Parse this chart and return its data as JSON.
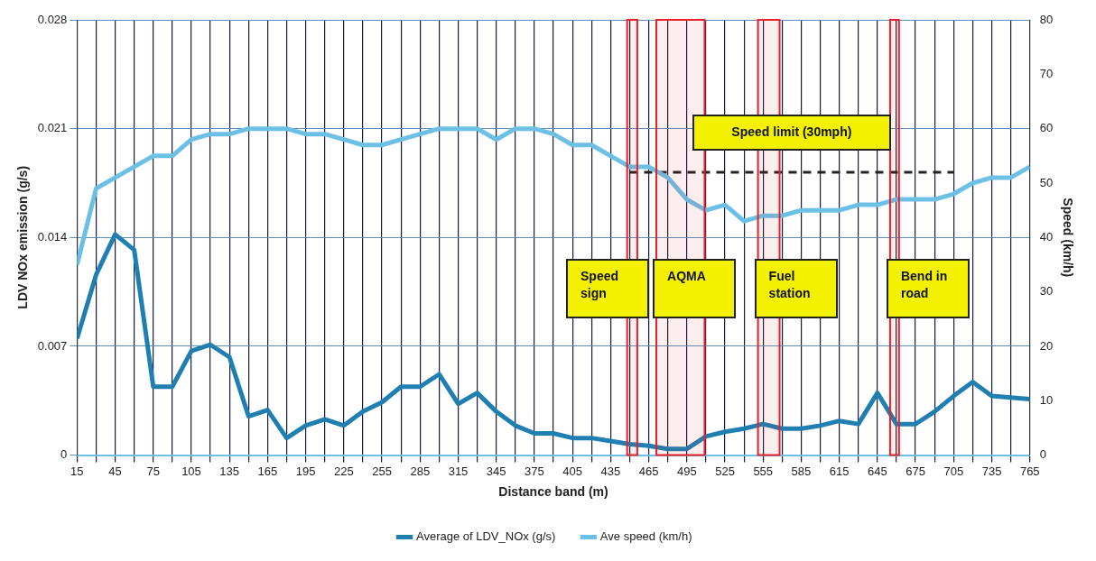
{
  "chart_data": {
    "type": "line",
    "xlabel": "Distance band (m)",
    "ylabel": "LDV NOx emission (g/s)",
    "y2label": "Speed (km/h)",
    "x": [
      15,
      30,
      45,
      60,
      75,
      90,
      105,
      120,
      135,
      150,
      165,
      180,
      195,
      210,
      225,
      240,
      255,
      270,
      285,
      300,
      315,
      330,
      345,
      360,
      375,
      390,
      405,
      420,
      435,
      450,
      465,
      480,
      495,
      510,
      525,
      540,
      555,
      570,
      585,
      600,
      615,
      630,
      645,
      660,
      675,
      690,
      705,
      720,
      735,
      750,
      765
    ],
    "xlim": [
      15,
      765
    ],
    "xticks": [
      15,
      {
        "value": 30,
        "label": null
      },
      45,
      {
        "value": 60,
        "label": null
      },
      75,
      {
        "value": 90,
        "label": null
      },
      105,
      {
        "value": 120,
        "label": null
      },
      135,
      {
        "value": 150,
        "label": null
      },
      165,
      {
        "value": 180,
        "label": null
      },
      195,
      {
        "value": 210,
        "label": null
      },
      225,
      {
        "value": 240,
        "label": null
      },
      255,
      {
        "value": 270,
        "label": null
      },
      285,
      {
        "value": 300,
        "label": null
      },
      315,
      {
        "value": 330,
        "label": null
      },
      345,
      {
        "value": 360,
        "label": null
      },
      375,
      {
        "value": 390,
        "label": null
      },
      405,
      {
        "value": 420,
        "label": null
      },
      435,
      {
        "value": 450,
        "label": null
      },
      465,
      {
        "value": 480,
        "label": null
      },
      495,
      {
        "value": 510,
        "label": null
      },
      525,
      {
        "value": 540,
        "label": null
      },
      555,
      {
        "value": 570,
        "label": null
      },
      585,
      {
        "value": 600,
        "label": null
      },
      615,
      {
        "value": 630,
        "label": null
      },
      645,
      {
        "value": 660,
        "label": null
      },
      675,
      {
        "value": 690,
        "label": null
      },
      705,
      {
        "value": 720,
        "label": null
      },
      735,
      {
        "value": 750,
        "label": null
      },
      765
    ],
    "series": [
      {
        "name": "Average of LDV_NOx (g/s)",
        "color": "#1f7fb0",
        "values": [
          0.0075,
          0.0116,
          0.0142,
          0.0132,
          0.0044,
          0.0044,
          0.0067,
          0.0071,
          0.0063,
          0.0025,
          0.0029,
          0.0011,
          0.0019,
          0.0023,
          0.0019,
          0.0028,
          0.0034,
          0.0044,
          0.0044,
          0.0052,
          0.0033,
          0.004,
          0.0028,
          0.0019,
          0.0014,
          0.0014,
          0.0011,
          0.0011,
          0.0009,
          0.0007,
          0.0006,
          0.0004,
          0.0004,
          0.0012,
          0.0015,
          0.0017,
          0.002,
          0.0017,
          0.0017,
          0.0019,
          0.0022,
          0.002,
          0.004,
          0.002,
          0.002,
          0.0028,
          0.0038,
          0.0047,
          0.0038,
          0.0037,
          0.0036
        ]
      },
      {
        "name": "Ave speed (km/h)",
        "color": "#6cc0e6",
        "axis": "y2",
        "values": [
          35,
          49,
          51,
          53,
          55,
          55,
          58,
          59,
          59,
          60,
          60,
          60,
          59,
          59,
          58,
          57,
          57,
          58,
          59,
          60,
          60,
          60,
          58,
          60,
          60,
          59,
          57,
          57,
          55,
          53,
          53,
          51,
          47,
          45,
          46,
          43,
          44,
          44,
          45,
          45,
          45,
          46,
          46,
          47,
          47,
          47,
          48,
          50,
          51,
          51,
          53
        ]
      },
      {
        "color": "#222222",
        "axis": "y2",
        "line_style": "dashed",
        "values": [
          null,
          null,
          null,
          null,
          null,
          null,
          null,
          null,
          null,
          null,
          null,
          null,
          null,
          null,
          null,
          null,
          null,
          null,
          null,
          null,
          null,
          null,
          null,
          null,
          null,
          null,
          null,
          null,
          null,
          52,
          52,
          52,
          52,
          52,
          52,
          52,
          52,
          52,
          52,
          52,
          52,
          52,
          52,
          52,
          52,
          52,
          52,
          null,
          null,
          null,
          null
        ]
      }
    ],
    "ylim": [
      0,
      0.028
    ],
    "yticks": [
      0,
      0.007,
      0.014,
      0.021,
      0.028
    ],
    "y2lim": [
      0,
      80
    ],
    "y2ticks": [
      0,
      10,
      20,
      30,
      40,
      50,
      60,
      70,
      80
    ],
    "grid": true,
    "legend": "bottom",
    "marker": "none",
    "bands": [
      {
        "axis": "x",
        "from": 448,
        "to": 456,
        "label": "Speed sign",
        "color": "#e8202a"
      },
      {
        "axis": "x",
        "from": 471,
        "to": 509,
        "label": "AQMA",
        "color": "#e8202a"
      },
      {
        "axis": "x",
        "from": 551,
        "to": 568,
        "label": "Fuel station",
        "color": "#e8202a"
      },
      {
        "axis": "x",
        "from": 655,
        "to": 662,
        "label": "Bend in road",
        "color": "#e8202a"
      }
    ],
    "annotations": [
      "Speed limit (30mph)"
    ]
  }
}
